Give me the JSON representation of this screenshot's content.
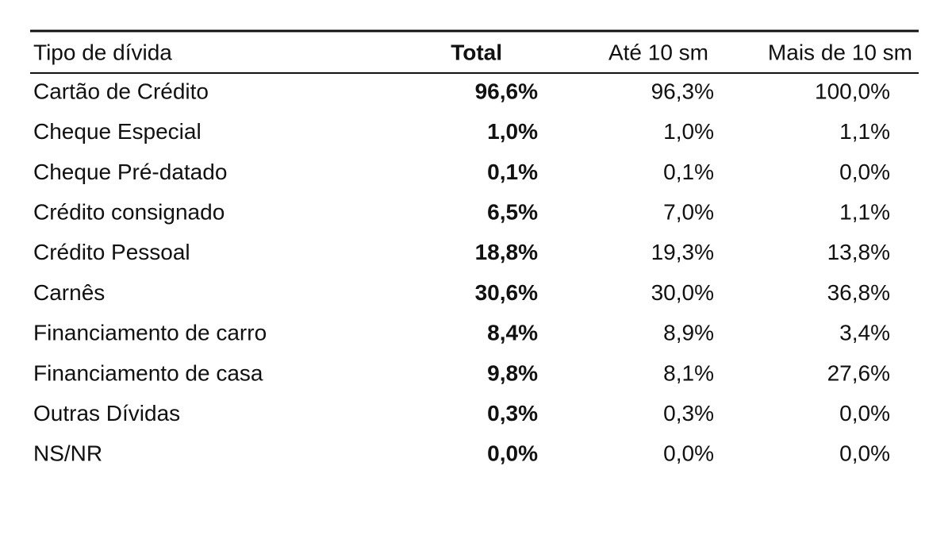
{
  "table": {
    "header": [
      "Tipo  de dívida",
      "Total",
      "Até 10 sm",
      "Mais de 10 sm"
    ],
    "rows": [
      [
        "Cartão de Crédito",
        "96,6%",
        "96,3%",
        "100,0%"
      ],
      [
        "Cheque Especial",
        "1,0%",
        "1,0%",
        "1,1%"
      ],
      [
        "Cheque Pré-datado",
        "0,1%",
        "0,1%",
        "0,0%"
      ],
      [
        "Crédito consignado",
        "6,5%",
        "7,0%",
        "1,1%"
      ],
      [
        "Crédito Pessoal",
        "18,8%",
        "19,3%",
        "13,8%"
      ],
      [
        "Carnês",
        "30,6%",
        "30,0%",
        "36,8%"
      ],
      [
        "Financiamento de carro",
        "8,4%",
        "8,9%",
        "3,4%"
      ],
      [
        "Financiamento de casa",
        "9,8%",
        "8,1%",
        "27,6%"
      ],
      [
        "Outras Dívidas",
        "0,3%",
        "0,3%",
        "0,0%"
      ],
      [
        "NS/NR",
        "0,0%",
        "0,0%",
        "0,0%"
      ]
    ]
  }
}
